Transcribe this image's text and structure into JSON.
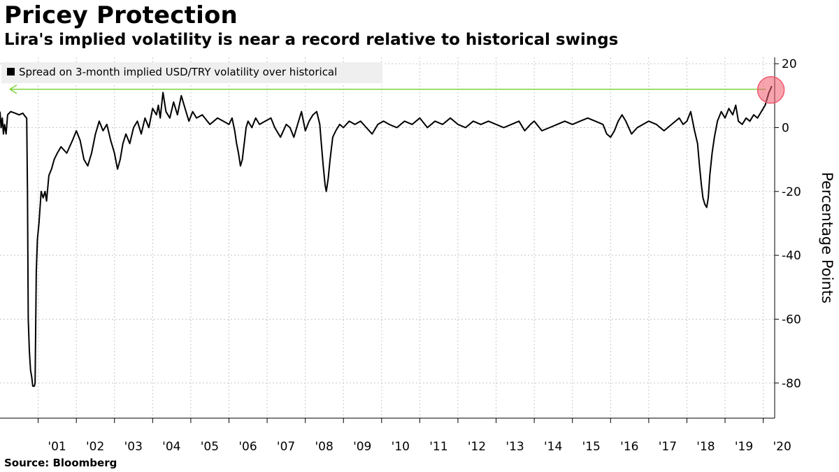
{
  "header": {
    "title": "Pricey Protection",
    "subtitle": "Lira's implied volatility is near a record relative to historical swings"
  },
  "footer": {
    "source": "Source: Bloomberg"
  },
  "colors": {
    "series": "#000000",
    "grid": "#c8c8c8",
    "arrow": "#7cd23a",
    "highlight": "#f05a6e",
    "legend_bg": "#efefef"
  },
  "chart_data": {
    "type": "line",
    "title": "Pricey Protection",
    "subtitle": "Lira's implied volatility is near a record relative to historical swings",
    "xlabel": "",
    "ylabel": "Percentage Points",
    "xlim": [
      2000.0,
      2020.3
    ],
    "ylim": [
      -91,
      22
    ],
    "yticks": [
      20,
      0,
      -20,
      -40,
      -60,
      -80
    ],
    "x_ticks": [
      {
        "label": "'01",
        "year": 2001
      },
      {
        "label": "'02",
        "year": 2002
      },
      {
        "label": "'03",
        "year": 2003
      },
      {
        "label": "'04",
        "year": 2004
      },
      {
        "label": "'05",
        "year": 2005
      },
      {
        "label": "'06",
        "year": 2006
      },
      {
        "label": "'07",
        "year": 2007
      },
      {
        "label": "'08",
        "year": 2008
      },
      {
        "label": "'09",
        "year": 2009
      },
      {
        "label": "'10",
        "year": 2010
      },
      {
        "label": "'11",
        "year": 2011
      },
      {
        "label": "'12",
        "year": 2012
      },
      {
        "label": "'13",
        "year": 2013
      },
      {
        "label": "'14",
        "year": 2014
      },
      {
        "label": "'15",
        "year": 2015
      },
      {
        "label": "'16",
        "year": 2016
      },
      {
        "label": "'17",
        "year": 2017
      },
      {
        "label": "'18",
        "year": 2018
      },
      {
        "label": "'19",
        "year": 2019
      },
      {
        "label": "'20",
        "year": 2020
      }
    ],
    "grid": true,
    "legend": "top-left",
    "reference_value": 12,
    "series": [
      {
        "name": "Spread on 3-month implied USD/TRY volatility over historical",
        "points": [
          [
            2000.0,
            5
          ],
          [
            2000.03,
            0
          ],
          [
            2000.06,
            3
          ],
          [
            2000.09,
            -2
          ],
          [
            2000.12,
            1
          ],
          [
            2000.16,
            -2
          ],
          [
            2000.2,
            4
          ],
          [
            2000.28,
            5
          ],
          [
            2000.4,
            4.5
          ],
          [
            2000.5,
            4
          ],
          [
            2000.6,
            4.5
          ],
          [
            2000.66,
            3.5
          ],
          [
            2000.7,
            3
          ],
          [
            2000.72,
            -20
          ],
          [
            2000.74,
            -60
          ],
          [
            2000.77,
            -70
          ],
          [
            2000.8,
            -76
          ],
          [
            2000.83,
            -78
          ],
          [
            2000.86,
            -81
          ],
          [
            2000.9,
            -81
          ],
          [
            2000.92,
            -80
          ],
          [
            2000.95,
            -45
          ],
          [
            2000.98,
            -35
          ],
          [
            2001.02,
            -30
          ],
          [
            2001.05,
            -25
          ],
          [
            2001.08,
            -20
          ],
          [
            2001.13,
            -22
          ],
          [
            2001.18,
            -20
          ],
          [
            2001.22,
            -23
          ],
          [
            2001.28,
            -15
          ],
          [
            2001.35,
            -13
          ],
          [
            2001.42,
            -10
          ],
          [
            2001.5,
            -8
          ],
          [
            2001.6,
            -6
          ],
          [
            2001.75,
            -8
          ],
          [
            2001.9,
            -4
          ],
          [
            2002.0,
            -1
          ],
          [
            2002.1,
            -4
          ],
          [
            2002.2,
            -10
          ],
          [
            2002.3,
            -12
          ],
          [
            2002.4,
            -8
          ],
          [
            2002.5,
            -2
          ],
          [
            2002.6,
            2
          ],
          [
            2002.7,
            -1
          ],
          [
            2002.8,
            1
          ],
          [
            2002.9,
            -4
          ],
          [
            2003.0,
            -8
          ],
          [
            2003.08,
            -13
          ],
          [
            2003.15,
            -10
          ],
          [
            2003.22,
            -5
          ],
          [
            2003.3,
            -2
          ],
          [
            2003.4,
            -5
          ],
          [
            2003.5,
            0
          ],
          [
            2003.6,
            2
          ],
          [
            2003.7,
            -2
          ],
          [
            2003.8,
            3
          ],
          [
            2003.9,
            0
          ],
          [
            2004.0,
            6
          ],
          [
            2004.1,
            4
          ],
          [
            2004.15,
            7
          ],
          [
            2004.2,
            3
          ],
          [
            2004.27,
            11
          ],
          [
            2004.35,
            5
          ],
          [
            2004.45,
            3
          ],
          [
            2004.55,
            8
          ],
          [
            2004.65,
            4
          ],
          [
            2004.75,
            10
          ],
          [
            2004.85,
            6
          ],
          [
            2004.95,
            2
          ],
          [
            2005.05,
            5
          ],
          [
            2005.15,
            3
          ],
          [
            2005.3,
            4
          ],
          [
            2005.5,
            1
          ],
          [
            2005.7,
            3
          ],
          [
            2005.85,
            2
          ],
          [
            2006.0,
            1
          ],
          [
            2006.08,
            3
          ],
          [
            2006.15,
            -1
          ],
          [
            2006.2,
            -5
          ],
          [
            2006.25,
            -8
          ],
          [
            2006.3,
            -12
          ],
          [
            2006.35,
            -10
          ],
          [
            2006.4,
            -5
          ],
          [
            2006.45,
            0
          ],
          [
            2006.5,
            2
          ],
          [
            2006.6,
            0
          ],
          [
            2006.7,
            3
          ],
          [
            2006.8,
            1
          ],
          [
            2006.95,
            2
          ],
          [
            2007.1,
            3
          ],
          [
            2007.2,
            0
          ],
          [
            2007.35,
            -3
          ],
          [
            2007.5,
            1
          ],
          [
            2007.6,
            0
          ],
          [
            2007.7,
            -3
          ],
          [
            2007.8,
            1
          ],
          [
            2007.9,
            5
          ],
          [
            2008.0,
            -1
          ],
          [
            2008.1,
            2
          ],
          [
            2008.2,
            4
          ],
          [
            2008.3,
            5
          ],
          [
            2008.38,
            1
          ],
          [
            2008.42,
            -5
          ],
          [
            2008.47,
            -12
          ],
          [
            2008.52,
            -18
          ],
          [
            2008.55,
            -20
          ],
          [
            2008.6,
            -16
          ],
          [
            2008.65,
            -10
          ],
          [
            2008.72,
            -3
          ],
          [
            2008.8,
            -1
          ],
          [
            2008.9,
            1
          ],
          [
            2009.0,
            0
          ],
          [
            2009.15,
            2
          ],
          [
            2009.3,
            1
          ],
          [
            2009.45,
            2
          ],
          [
            2009.6,
            0
          ],
          [
            2009.75,
            -2
          ],
          [
            2009.9,
            1
          ],
          [
            2010.05,
            2
          ],
          [
            2010.2,
            1
          ],
          [
            2010.4,
            0
          ],
          [
            2010.6,
            2
          ],
          [
            2010.8,
            1
          ],
          [
            2011.0,
            3
          ],
          [
            2011.2,
            0
          ],
          [
            2011.4,
            2
          ],
          [
            2011.6,
            1
          ],
          [
            2011.8,
            3
          ],
          [
            2012.0,
            1
          ],
          [
            2012.2,
            0
          ],
          [
            2012.4,
            2
          ],
          [
            2012.6,
            1
          ],
          [
            2012.8,
            2
          ],
          [
            2013.0,
            1
          ],
          [
            2013.2,
            0
          ],
          [
            2013.4,
            1
          ],
          [
            2013.6,
            2
          ],
          [
            2013.75,
            -1
          ],
          [
            2013.9,
            1
          ],
          [
            2014.0,
            2
          ],
          [
            2014.2,
            -1
          ],
          [
            2014.4,
            0
          ],
          [
            2014.6,
            1
          ],
          [
            2014.8,
            2
          ],
          [
            2015.0,
            1
          ],
          [
            2015.2,
            2
          ],
          [
            2015.4,
            3
          ],
          [
            2015.6,
            2
          ],
          [
            2015.8,
            1
          ],
          [
            2015.9,
            -2
          ],
          [
            2016.0,
            -3
          ],
          [
            2016.1,
            -1
          ],
          [
            2016.2,
            2
          ],
          [
            2016.3,
            4
          ],
          [
            2016.4,
            2
          ],
          [
            2016.55,
            -2
          ],
          [
            2016.7,
            0
          ],
          [
            2016.85,
            1
          ],
          [
            2017.0,
            2
          ],
          [
            2017.2,
            1
          ],
          [
            2017.4,
            -1
          ],
          [
            2017.6,
            1
          ],
          [
            2017.8,
            3
          ],
          [
            2017.9,
            1
          ],
          [
            2018.0,
            2
          ],
          [
            2018.1,
            5
          ],
          [
            2018.2,
            -1
          ],
          [
            2018.28,
            -5
          ],
          [
            2018.33,
            -12
          ],
          [
            2018.38,
            -18
          ],
          [
            2018.42,
            -22
          ],
          [
            2018.47,
            -24
          ],
          [
            2018.52,
            -25
          ],
          [
            2018.56,
            -22
          ],
          [
            2018.6,
            -15
          ],
          [
            2018.66,
            -8
          ],
          [
            2018.72,
            -3
          ],
          [
            2018.8,
            2
          ],
          [
            2018.9,
            5
          ],
          [
            2019.0,
            3
          ],
          [
            2019.1,
            6
          ],
          [
            2019.2,
            4
          ],
          [
            2019.28,
            7
          ],
          [
            2019.35,
            2
          ],
          [
            2019.45,
            1
          ],
          [
            2019.55,
            3
          ],
          [
            2019.65,
            2
          ],
          [
            2019.75,
            4
          ],
          [
            2019.85,
            3
          ],
          [
            2019.95,
            5
          ],
          [
            2020.05,
            7
          ],
          [
            2020.1,
            9
          ],
          [
            2020.15,
            11
          ],
          [
            2020.19,
            12
          ],
          [
            2020.22,
            13
          ]
        ]
      }
    ]
  }
}
